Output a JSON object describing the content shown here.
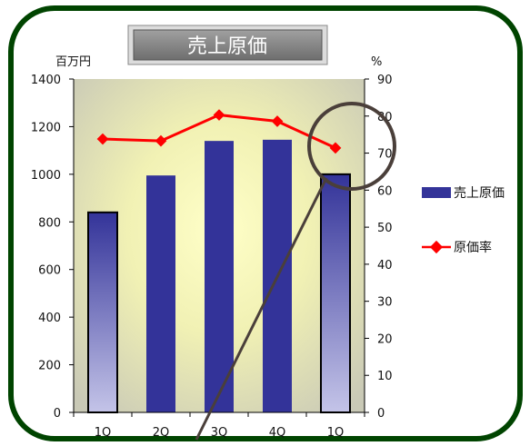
{
  "chart_data": {
    "type": "bar",
    "title": "売上原価",
    "categories": [
      "1Q",
      "2Q",
      "3Q",
      "4Q",
      "1Q"
    ],
    "y_left": {
      "unit": "百万円",
      "range": [
        0,
        1400
      ],
      "ticks": [
        0,
        200,
        400,
        600,
        800,
        1000,
        1200,
        1400
      ]
    },
    "y_right": {
      "unit": "%",
      "range": [
        0,
        90
      ],
      "ticks": [
        0,
        10,
        20,
        30,
        40,
        50,
        60,
        70,
        80,
        90
      ]
    },
    "series": [
      {
        "name": "売上原価",
        "kind": "bar",
        "axis": "left",
        "values": [
          840,
          995,
          1140,
          1145,
          1000
        ]
      },
      {
        "name": "原価率",
        "kind": "line",
        "axis": "right",
        "values": [
          73.8,
          73.3,
          80.3,
          78.6,
          71.4
        ]
      }
    ],
    "legend_position": "right",
    "grid": false,
    "colors": {
      "bar": "#333399",
      "line": "#ff0000",
      "frame": "#004400",
      "title_box": "#808080",
      "annotation": "#4a3f3a"
    },
    "annotations": [
      "circle-highlight-last-quarter",
      "pointer-line"
    ]
  }
}
